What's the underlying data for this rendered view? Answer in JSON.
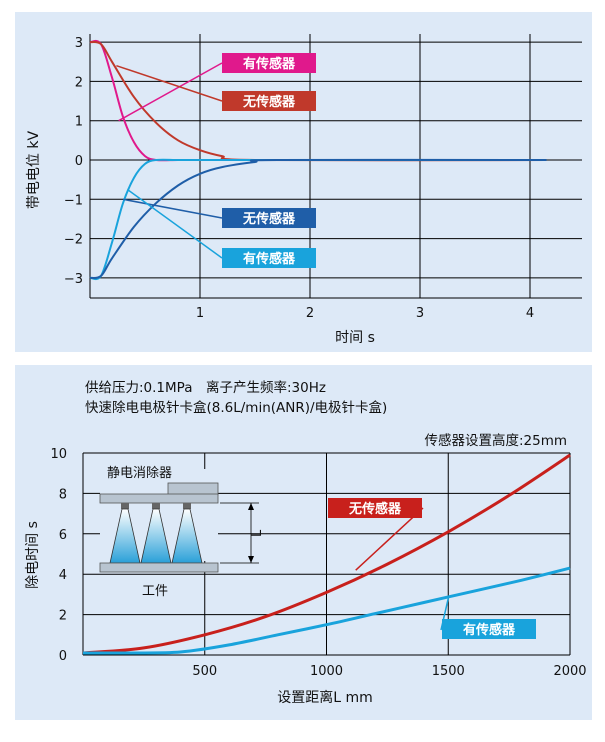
{
  "chart_data": [
    {
      "type": "line",
      "xlabel": "时间 s",
      "ylabel": "带电电位 kV",
      "xlim": [
        0,
        4.3
      ],
      "ylim": [
        -3.3,
        3.3
      ],
      "x_ticks": [
        "1",
        "2",
        "3",
        "4"
      ],
      "y_ticks": [
        "3",
        "2",
        "1",
        "0",
        "−1",
        "−2",
        "−3"
      ],
      "grid": true,
      "series": [
        {
          "name": "有传感器",
          "color": "#e0198c",
          "x": [
            0,
            0.1,
            0.2,
            0.3,
            0.4,
            0.5,
            0.6,
            0.8,
            1.0,
            4.15
          ],
          "y": [
            3,
            2.95,
            2.1,
            1.1,
            0.45,
            0.1,
            0.0,
            0.0,
            0.0,
            0.0
          ]
        },
        {
          "name": "无传感器",
          "color": "#c0392b",
          "x": [
            0,
            0.1,
            0.2,
            0.4,
            0.6,
            0.8,
            1.0,
            1.2,
            1.5,
            4.15
          ],
          "y": [
            3,
            2.95,
            2.5,
            1.6,
            0.95,
            0.5,
            0.25,
            0.1,
            0.0,
            0.0
          ]
        },
        {
          "name": "有传感器",
          "color": "#19a3dc",
          "x": [
            0,
            0.1,
            0.2,
            0.3,
            0.4,
            0.5,
            0.6,
            0.8,
            1.0,
            4.15
          ],
          "y": [
            -3,
            -2.95,
            -2.1,
            -1.1,
            -0.45,
            -0.1,
            0.0,
            0.0,
            0.0,
            0.0
          ]
        },
        {
          "name": "无传感器",
          "color": "#1f5ea8",
          "x": [
            0,
            0.1,
            0.2,
            0.4,
            0.6,
            0.8,
            1.0,
            1.2,
            1.5,
            1.7,
            4.15
          ],
          "y": [
            -3,
            -2.95,
            -2.5,
            -1.7,
            -1.1,
            -0.65,
            -0.35,
            -0.18,
            -0.05,
            0.0,
            0.0
          ]
        }
      ],
      "labels": [
        {
          "text": "有传感器",
          "color": "#e0198c"
        },
        {
          "text": "无传感器",
          "color": "#c0392b"
        },
        {
          "text": "无传感器",
          "color": "#1f5ea8"
        },
        {
          "text": "有传感器",
          "color": "#19a3dc"
        }
      ]
    },
    {
      "type": "line",
      "notes": [
        "供给压力:0.1MPa　离子产生频率:30Hz",
        "快速除电电极针卡盒(8.6L/min(ANR)/电极针卡盒)",
        "传感器设置高度:25mm"
      ],
      "xlabel": "设置距离L mm",
      "ylabel": "除电时间 s",
      "xlim": [
        0,
        2000
      ],
      "ylim": [
        0,
        10
      ],
      "x_ticks": [
        "500",
        "1000",
        "1500",
        "2000"
      ],
      "y_ticks": [
        "10",
        "8",
        "6",
        "4",
        "2",
        "0"
      ],
      "grid": true,
      "series": [
        {
          "name": "无传感器",
          "color": "#c8201c",
          "x": [
            0,
            250,
            500,
            750,
            1000,
            1250,
            1500,
            1750,
            2000
          ],
          "y": [
            0.1,
            0.35,
            1.0,
            1.9,
            3.1,
            4.5,
            6.1,
            7.9,
            9.9
          ]
        },
        {
          "name": "有传感器",
          "color": "#19a3dc",
          "x": [
            0,
            200,
            400,
            600,
            800,
            1000,
            1200,
            1400,
            1600,
            1800,
            2000
          ],
          "y": [
            0.1,
            0.1,
            0.15,
            0.5,
            1.0,
            1.5,
            2.05,
            2.6,
            3.15,
            3.7,
            4.3
          ]
        }
      ],
      "labels": [
        {
          "text": "无传感器",
          "color": "#c8201c"
        },
        {
          "text": "有传感器",
          "color": "#19a3dc"
        }
      ],
      "diagram": {
        "ionizer_label": "静电消除器",
        "workpiece_label": "工件",
        "distance_label": "L"
      }
    }
  ]
}
